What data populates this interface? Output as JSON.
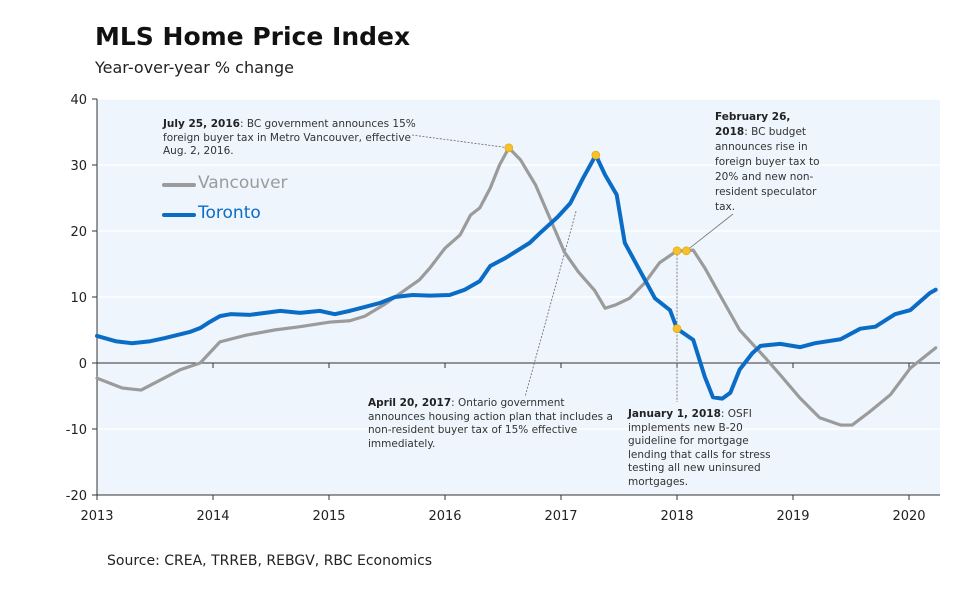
{
  "title": "MLS Home Price Index",
  "subtitle": "Year-over-year % change",
  "source": "Source: CREA, TRREB, REBGV, RBC Economics",
  "colors": {
    "vancouver": "#9b9b9b",
    "toronto": "#0b6cc6",
    "marker": "#f6c12d",
    "plot_bg": "#eef5fd"
  },
  "annotations": [
    {
      "date": "July 25, 2016",
      "text": ": BC government announces 15% foreign buyer tax in Metro Vancouver, effective Aug. 2, 2016."
    },
    {
      "date": "April 20, 2017",
      "text": ": Ontario government announces housing action plan that includes a non-resident buyer tax of 15% effective immediately."
    },
    {
      "date": "January 1, 2018",
      "text": ": OSFI implements new B-20 guideline for mortgage lending that calls for stress testing all new uninsured mortgages."
    },
    {
      "date": "February 26, 2018",
      "text": ": BC budget announces rise in foreign buyer tax to 20% and new non-resident speculator tax."
    }
  ],
  "chart_data": {
    "type": "line",
    "title": "MLS Home Price Index",
    "subtitle": "Year-over-year % change",
    "xlabel": "",
    "ylabel": "",
    "xlim": [
      2013,
      2020.25
    ],
    "ylim": [
      -20,
      40
    ],
    "x_ticks": [
      "2013",
      "2014",
      "2015",
      "2016",
      "2017",
      "2018",
      "2019",
      "2020"
    ],
    "y_ticks": [
      "-20",
      "-10",
      "0",
      "10",
      "20",
      "30",
      "40"
    ],
    "legend": "top-left",
    "grid": true,
    "series": [
      {
        "name": "Vancouver",
        "x": [
          2013.0,
          2013.22,
          2013.38,
          2013.5,
          2013.72,
          2013.89,
          2014.06,
          2014.28,
          2014.53,
          2014.75,
          2015.01,
          2015.18,
          2015.31,
          2015.48,
          2015.61,
          2015.78,
          2015.87,
          2016.0,
          2016.13,
          2016.22,
          2016.3,
          2016.39,
          2016.47,
          2016.55,
          2016.65,
          2016.78,
          2016.91,
          2017.03,
          2017.15,
          2017.29,
          2017.38,
          2017.47,
          2017.59,
          2017.72,
          2017.85,
          2018.0,
          2018.08,
          2018.14,
          2018.24,
          2018.37,
          2018.54,
          2018.76,
          2018.89,
          2019.06,
          2019.23,
          2019.41,
          2019.51,
          2019.66,
          2019.84,
          2020.01,
          2020.23
        ],
        "y": [
          -2.3,
          -3.8,
          -4.1,
          -3.0,
          -1.0,
          0,
          3.2,
          4.2,
          5.0,
          5.5,
          6.2,
          6.4,
          7.1,
          8.9,
          10.5,
          12.6,
          14.4,
          17.4,
          19.4,
          22.4,
          23.5,
          26.5,
          30.0,
          32.6,
          30.8,
          27.0,
          21.7,
          16.8,
          13.8,
          11.0,
          8.3,
          8.8,
          9.8,
          12.1,
          15.2,
          17.0,
          17.0,
          17.1,
          14.4,
          10.3,
          5.0,
          0.8,
          -1.8,
          -5.3,
          -8.3,
          -9.4,
          -9.4,
          -7.4,
          -4.8,
          -0.8,
          2.3
        ]
      },
      {
        "name": "Toronto",
        "x": [
          2013.0,
          2013.16,
          2013.3,
          2013.46,
          2013.59,
          2013.8,
          2013.89,
          2013.97,
          2014.06,
          2014.15,
          2014.32,
          2014.45,
          2014.58,
          2014.75,
          2014.92,
          2015.05,
          2015.18,
          2015.31,
          2015.44,
          2015.57,
          2015.72,
          2015.87,
          2016.04,
          2016.17,
          2016.3,
          2016.39,
          2016.52,
          2016.73,
          2016.82,
          2016.97,
          2017.08,
          2017.19,
          2017.3,
          2017.38,
          2017.48,
          2017.55,
          2017.68,
          2017.81,
          2017.94,
          2018.0,
          2018.14,
          2018.24,
          2018.31,
          2018.39,
          2018.46,
          2018.54,
          2018.65,
          2018.72,
          2018.89,
          2019.06,
          2019.19,
          2019.41,
          2019.58,
          2019.71,
          2019.88,
          2020.01,
          2020.18,
          2020.23
        ],
        "y": [
          4.1,
          3.3,
          3.0,
          3.3,
          3.8,
          4.7,
          5.3,
          6.2,
          7.1,
          7.4,
          7.3,
          7.6,
          7.9,
          7.6,
          7.9,
          7.4,
          7.9,
          8.5,
          9.1,
          10.0,
          10.3,
          10.2,
          10.3,
          11.1,
          12.4,
          14.7,
          15.9,
          18.2,
          19.7,
          22.1,
          24.2,
          28.0,
          31.5,
          28.5,
          25.5,
          18.2,
          14.0,
          9.8,
          8.0,
          5.2,
          3.5,
          -2.1,
          -5.2,
          -5.4,
          -4.5,
          -1.0,
          1.5,
          2.6,
          2.9,
          2.4,
          3.0,
          3.6,
          5.2,
          5.5,
          7.4,
          8.0,
          10.6,
          11.1
        ]
      }
    ],
    "markers": [
      {
        "series": "Vancouver",
        "x": 2016.55,
        "y": 32.6,
        "label": "July 25, 2016"
      },
      {
        "series": "Toronto",
        "x": 2017.3,
        "y": 31.5,
        "label": "April 20, 2017"
      },
      {
        "series": "Vancouver",
        "x": 2018.0,
        "y": 17.0,
        "label": "January 1, 2018"
      },
      {
        "series": "Toronto",
        "x": 2018.0,
        "y": 5.2,
        "label": "January 1, 2018"
      },
      {
        "series": "Vancouver",
        "x": 2018.08,
        "y": 17.0,
        "label": "February 26, 2018"
      }
    ]
  }
}
